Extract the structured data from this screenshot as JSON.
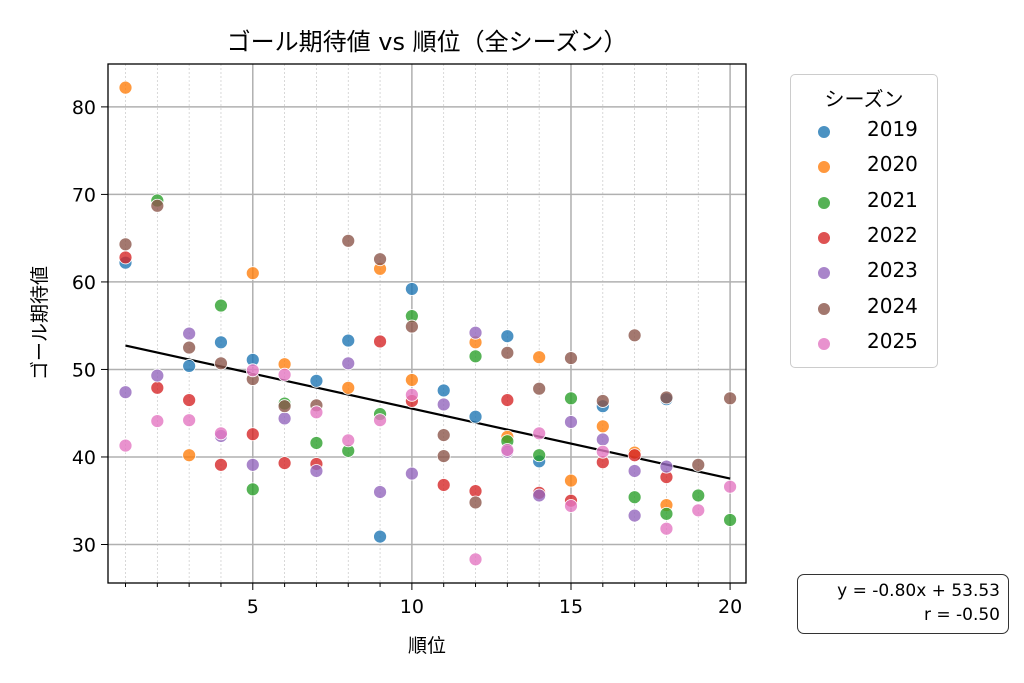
{
  "chart_data": {
    "type": "scatter",
    "title": "ゴール期待値 vs 順位（全シーズン）",
    "xlabel": "順位",
    "ylabel": "ゴール期待値",
    "xlim": [
      0.45,
      20.5
    ],
    "ylim": [
      25.6,
      84.9
    ],
    "xticks": [
      5,
      10,
      15,
      20
    ],
    "yticks": [
      30,
      40,
      50,
      60,
      70,
      80
    ],
    "grid": true,
    "minor_x_grid": true,
    "legend": {
      "title": "シーズン",
      "placement": "right"
    },
    "series": [
      {
        "name": "2019",
        "color": "#1f77b4",
        "points": [
          [
            1,
            62.2
          ],
          [
            3,
            50.4
          ],
          [
            4,
            53.1
          ],
          [
            5,
            51.1
          ],
          [
            7,
            48.7
          ],
          [
            8,
            53.3
          ],
          [
            9,
            30.9
          ],
          [
            10,
            59.2
          ],
          [
            11,
            47.6
          ],
          [
            12,
            44.6
          ],
          [
            13,
            53.8
          ],
          [
            14,
            39.5
          ],
          [
            16,
            45.8
          ],
          [
            18,
            46.6
          ]
        ]
      },
      {
        "name": "2020",
        "color": "#ff7f0e",
        "points": [
          [
            1,
            82.2
          ],
          [
            3,
            40.2
          ],
          [
            5,
            61.0
          ],
          [
            6,
            50.6
          ],
          [
            8,
            47.9
          ],
          [
            9,
            61.5
          ],
          [
            10,
            48.8
          ],
          [
            12,
            53.1
          ],
          [
            13,
            42.3
          ],
          [
            14,
            51.4
          ],
          [
            15,
            37.3
          ],
          [
            16,
            43.5
          ],
          [
            17,
            40.5
          ],
          [
            18,
            34.5
          ]
        ]
      },
      {
        "name": "2021",
        "color": "#2ca02c",
        "points": [
          [
            2,
            69.3
          ],
          [
            4,
            57.3
          ],
          [
            5,
            36.3
          ],
          [
            6,
            46.1
          ],
          [
            7,
            41.6
          ],
          [
            8,
            40.7
          ],
          [
            9,
            44.9
          ],
          [
            10,
            56.1
          ],
          [
            12,
            51.5
          ],
          [
            13,
            41.8
          ],
          [
            14,
            40.2
          ],
          [
            15,
            46.7
          ],
          [
            17,
            35.4
          ],
          [
            18,
            33.5
          ],
          [
            19,
            35.6
          ],
          [
            20,
            32.8
          ]
        ]
      },
      {
        "name": "2022",
        "color": "#d62728",
        "points": [
          [
            1,
            62.8
          ],
          [
            2,
            47.9
          ],
          [
            3,
            46.5
          ],
          [
            4,
            39.1
          ],
          [
            5,
            42.6
          ],
          [
            6,
            39.3
          ],
          [
            7,
            39.2
          ],
          [
            9,
            53.2
          ],
          [
            10,
            46.4
          ],
          [
            11,
            36.8
          ],
          [
            12,
            36.1
          ],
          [
            13,
            46.5
          ],
          [
            14,
            35.9
          ],
          [
            15,
            35.0
          ],
          [
            16,
            39.4
          ],
          [
            17,
            40.2
          ],
          [
            18,
            37.7
          ]
        ]
      },
      {
        "name": "2023",
        "color": "#9467bd",
        "points": [
          [
            1,
            47.4
          ],
          [
            2,
            49.3
          ],
          [
            3,
            54.1
          ],
          [
            4,
            42.4
          ],
          [
            5,
            39.1
          ],
          [
            6,
            44.4
          ],
          [
            7,
            38.4
          ],
          [
            8,
            50.7
          ],
          [
            9,
            36.0
          ],
          [
            10,
            38.1
          ],
          [
            11,
            46.0
          ],
          [
            12,
            54.2
          ],
          [
            13,
            40.6
          ],
          [
            14,
            35.6
          ],
          [
            15,
            44.0
          ],
          [
            16,
            42.0
          ],
          [
            17,
            38.4
          ],
          [
            18,
            38.9
          ],
          [
            17,
            33.3
          ]
        ]
      },
      {
        "name": "2024",
        "color": "#8c564b",
        "points": [
          [
            1,
            64.3
          ],
          [
            2,
            68.7
          ],
          [
            3,
            52.5
          ],
          [
            4,
            50.7
          ],
          [
            5,
            48.9
          ],
          [
            6,
            45.8
          ],
          [
            7,
            45.9
          ],
          [
            8,
            64.7
          ],
          [
            9,
            62.6
          ],
          [
            10,
            54.9
          ],
          [
            11,
            42.5
          ],
          [
            12,
            34.8
          ],
          [
            13,
            51.9
          ],
          [
            14,
            47.8
          ],
          [
            15,
            51.3
          ],
          [
            16,
            46.4
          ],
          [
            17,
            53.9
          ],
          [
            18,
            46.8
          ],
          [
            19,
            39.1
          ],
          [
            20,
            46.7
          ],
          [
            11,
            40.1
          ]
        ]
      },
      {
        "name": "2025",
        "color": "#e377c2",
        "points": [
          [
            1,
            41.3
          ],
          [
            2,
            44.1
          ],
          [
            3,
            44.2
          ],
          [
            4,
            42.7
          ],
          [
            5,
            49.9
          ],
          [
            6,
            49.4
          ],
          [
            7,
            45.1
          ],
          [
            8,
            41.9
          ],
          [
            9,
            44.2
          ],
          [
            10,
            47.1
          ],
          [
            12,
            28.3
          ],
          [
            13,
            40.8
          ],
          [
            14,
            42.7
          ],
          [
            15,
            34.4
          ],
          [
            16,
            40.6
          ],
          [
            18,
            31.8
          ],
          [
            19,
            33.9
          ],
          [
            20,
            36.6
          ]
        ]
      }
    ],
    "regression": {
      "slope": -0.8,
      "intercept": 53.53,
      "r": -0.5,
      "color": "#000000"
    },
    "stats_box": {
      "line1": "y = -0.80x + 53.53",
      "line2": "r = -0.50"
    }
  }
}
